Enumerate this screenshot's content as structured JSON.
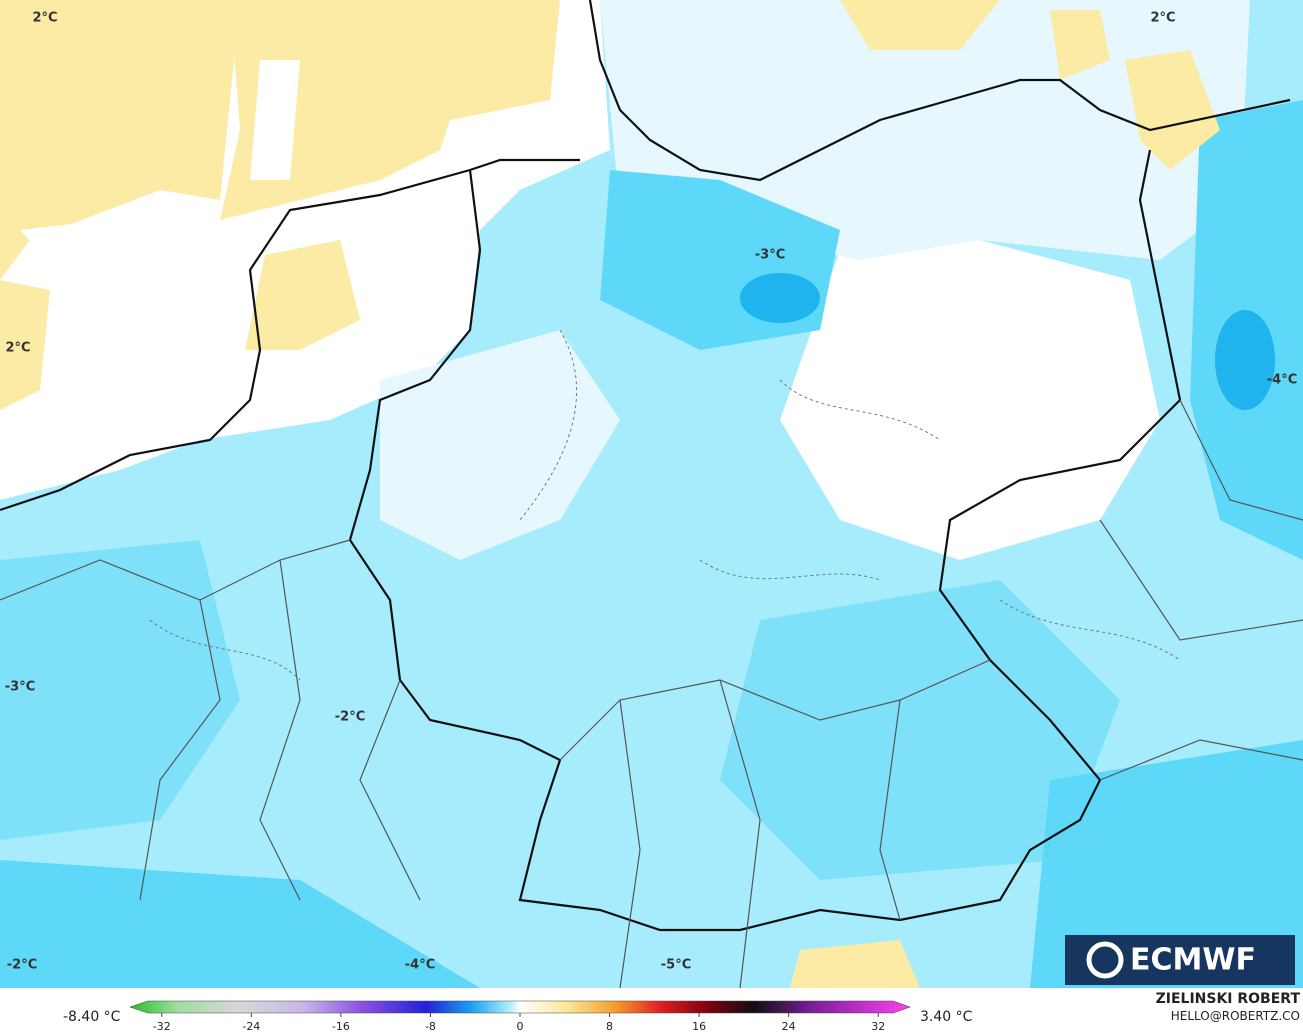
{
  "map": {
    "contour_labels": [
      "2°C",
      "2°C",
      "2°C",
      "-3°C",
      "-4°C",
      "-3°C",
      "-2°C",
      "-2°C",
      "-4°C",
      "-5°C"
    ]
  },
  "colorbar": {
    "min_label": "-8.40 °C",
    "max_label": "3.40 °C",
    "lim": [
      -36,
      36
    ],
    "ticks": [
      -32,
      -24,
      -16,
      -8,
      0,
      8,
      16,
      24,
      32
    ]
  },
  "logo": "ECMWF",
  "credits": {
    "author": "ZIELINSKI ROBERT",
    "contact": "HELLO@ROBERTZ.CO"
  }
}
